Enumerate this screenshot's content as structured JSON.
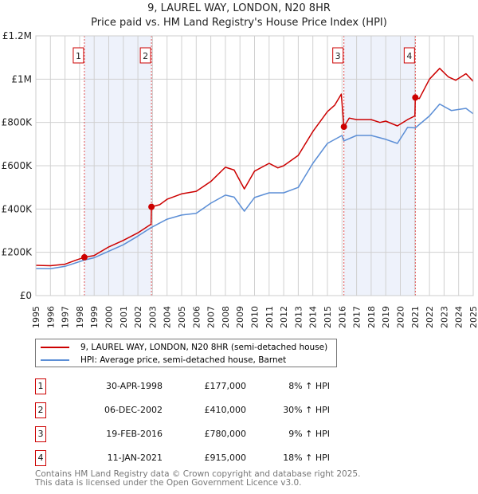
{
  "chart_data": {
    "type": "line",
    "title": "9, LAUREL WAY, LONDON, N20 8HR",
    "subtitle": "Price paid vs. HM Land Registry's House Price Index (HPI)",
    "xlim": [
      1995,
      2025
    ],
    "ylim": [
      0,
      1200000
    ],
    "y_ticks": [
      {
        "v": 0,
        "label": "£0"
      },
      {
        "v": 200000,
        "label": "£200K"
      },
      {
        "v": 400000,
        "label": "£400K"
      },
      {
        "v": 600000,
        "label": "£600K"
      },
      {
        "v": 800000,
        "label": "£800K"
      },
      {
        "v": 1000000,
        "label": "£1M"
      },
      {
        "v": 1200000,
        "label": "£1.2M"
      }
    ],
    "x_ticks": [
      "1995",
      "1996",
      "1997",
      "1998",
      "1999",
      "2000",
      "2001",
      "2002",
      "2003",
      "2004",
      "2005",
      "2006",
      "2007",
      "2008",
      "2009",
      "2010",
      "2011",
      "2012",
      "2013",
      "2014",
      "2015",
      "2016",
      "2017",
      "2018",
      "2019",
      "2020",
      "2021",
      "2022",
      "2023",
      "2024",
      "2025"
    ],
    "grid": true,
    "series": [
      {
        "name": "9, LAUREL WAY, LONDON, N20 8HR (semi-detached house)",
        "color": "#cc0000",
        "x": [
          1995,
          1996,
          1997,
          1997.8,
          1998.33,
          1999,
          2000,
          2001,
          2002,
          2002.9,
          2002.93,
          2003.5,
          2004,
          2005,
          2006,
          2007,
          2008,
          2008.6,
          2009.3,
          2010,
          2011,
          2011.6,
          2012,
          2013,
          2014,
          2015,
          2015.5,
          2015.95,
          2016.13,
          2016.5,
          2017,
          2018,
          2018.6,
          2019,
          2019.8,
          2020.5,
          2021.0,
          2021.03,
          2021.3,
          2022,
          2022.7,
          2023.3,
          2023.8,
          2024.5,
          2025
        ],
        "y": [
          140000,
          138000,
          145000,
          165000,
          177000,
          185000,
          225000,
          255000,
          290000,
          330000,
          410000,
          420000,
          445000,
          470000,
          482000,
          527000,
          593000,
          580000,
          493000,
          575000,
          611000,
          590000,
          600000,
          648000,
          758000,
          850000,
          880000,
          931000,
          780000,
          820000,
          813000,
          813000,
          800000,
          806000,
          784000,
          813000,
          830000,
          915000,
          910000,
          1000000,
          1050000,
          1010000,
          995000,
          1025000,
          990000
        ]
      },
      {
        "name": "HPI: Average price, semi-detached house, Barnet",
        "color": "#5b8ed6",
        "x": [
          1995,
          1996,
          1997,
          1998.33,
          1999,
          2000,
          2001,
          2002,
          2002.93,
          2004,
          2005,
          2006,
          2007,
          2008,
          2008.6,
          2009.3,
          2010,
          2011,
          2012,
          2013,
          2014,
          2015,
          2016,
          2016.13,
          2017,
          2018,
          2019,
          2019.8,
          2020.5,
          2021.03,
          2022,
          2022.7,
          2023.5,
          2024.5,
          2025
        ],
        "y": [
          125000,
          124000,
          135000,
          164000,
          175000,
          205000,
          235000,
          275000,
          315000,
          353000,
          372000,
          380000,
          427000,
          464000,
          455000,
          390000,
          453000,
          475000,
          475000,
          500000,
          611000,
          703000,
          740000,
          715000,
          740000,
          740000,
          722000,
          703000,
          777000,
          775000,
          830000,
          885000,
          855000,
          865000,
          840000
        ]
      }
    ],
    "sales": [
      {
        "n": "1",
        "date": "30-APR-1998",
        "price": "£177,000",
        "hpi": "8% ↑ HPI",
        "x": 1998.33,
        "y": 177000
      },
      {
        "n": "2",
        "date": "06-DEC-2002",
        "price": "£410,000",
        "hpi": "30% ↑ HPI",
        "x": 2002.93,
        "y": 410000
      },
      {
        "n": "3",
        "date": "19-FEB-2016",
        "price": "£780,000",
        "hpi": "9% ↑ HPI",
        "x": 2016.13,
        "y": 780000
      },
      {
        "n": "4",
        "date": "11-JAN-2021",
        "price": "£915,000",
        "hpi": "18% ↑ HPI",
        "x": 2021.03,
        "y": 915000
      }
    ],
    "shaded_ranges": [
      [
        1998.33,
        2002.93
      ],
      [
        2016.13,
        2021.03
      ]
    ]
  },
  "footer": {
    "line1": "Contains HM Land Registry data © Crown copyright and database right 2025.",
    "line2": "This data is licensed under the Open Government Licence v3.0."
  }
}
